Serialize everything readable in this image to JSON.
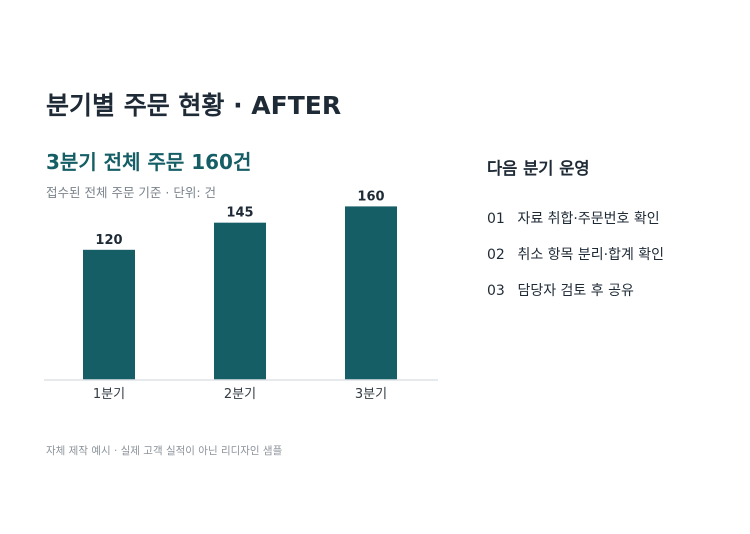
{
  "slide": {
    "title": "분기별 주문 현황 · AFTER",
    "headline": "3분기 전체 주문 160건",
    "subtitle": "접수된 전체 주문 기준 · 단위: 건",
    "footnote": "자체 제작 예시 · 실제 고객 실적이 아닌 리디자인 샘플"
  },
  "side_panel": {
    "heading": "다음 분기 운영",
    "items": [
      {
        "num": "01",
        "text": "자료 취합·주문번호 확인"
      },
      {
        "num": "02",
        "text": "취소 항목 분리·합계 확인"
      },
      {
        "num": "03",
        "text": "담당자 검토 후 공유"
      }
    ]
  },
  "colors": {
    "bar": "#155e66",
    "baseline": "#dfe3e6"
  },
  "chart_data": {
    "type": "bar",
    "title": "",
    "xlabel": "",
    "ylabel": "",
    "categories": [
      "1분기",
      "2분기",
      "3분기"
    ],
    "values": [
      120,
      145,
      160
    ],
    "ylim": [
      0,
      200
    ],
    "grid": false,
    "legend": "none",
    "data_labels": true
  }
}
